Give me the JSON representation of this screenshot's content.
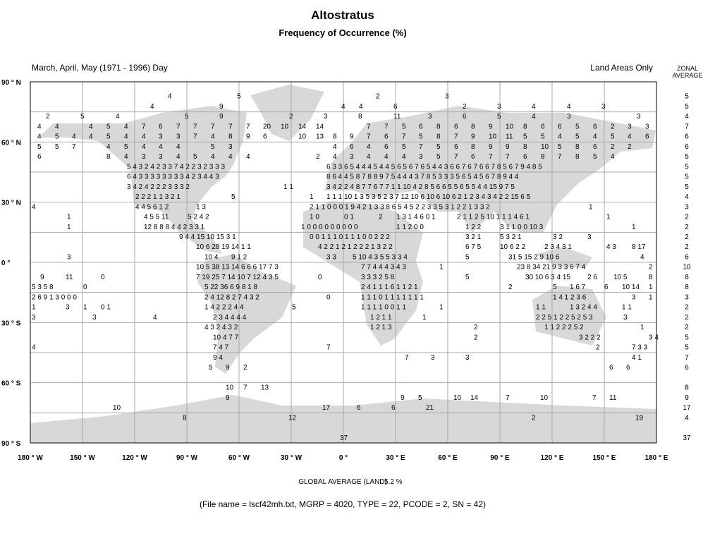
{
  "header": {
    "title": "Altostratus",
    "subtitle": "Frequency of Occurrence (%)",
    "season": "March, April, May (1971 - 1996) Day",
    "region": "Land Areas Only",
    "zonal_label": "ZONAL",
    "zonal_label_2": "AVERAGE"
  },
  "map": {
    "lat_labels": [
      "90 ° N",
      "60 ° N",
      "30 ° N",
      "0 °",
      "30 ° S",
      "60 ° S",
      "90 ° S"
    ],
    "lon_labels": [
      "180 ° W",
      "150 ° W",
      "120 ° W",
      "90 ° W",
      "60 ° W",
      "30 ° W",
      "0 °",
      "30 ° E",
      "60 ° E",
      "90 ° E",
      "120 ° E",
      "150 ° E",
      "180 ° E"
    ],
    "zonal_average": [
      "5",
      "5",
      "4",
      "7",
      "6",
      "6",
      "5",
      "5",
      "5",
      "5",
      "4",
      "3",
      "2",
      "2",
      "2",
      "2",
      "6",
      "10",
      "8",
      "8",
      "3",
      "2",
      "2",
      "2",
      "5",
      "5",
      "7",
      "6",
      null,
      "8",
      "9",
      "17",
      "4",
      null,
      "37"
    ],
    "rows": [
      [
        "4",
        "5",
        "2",
        "3"
      ],
      [
        "4",
        "9",
        "4",
        "4",
        "6",
        "2",
        "3",
        "4",
        "4",
        "3"
      ],
      [
        "2",
        "5",
        "4",
        "5",
        "9",
        "2",
        "3",
        "8",
        "11",
        "3",
        "6",
        "5",
        "4",
        "3",
        "3"
      ],
      [
        "4",
        "4",
        "4",
        "5",
        "4",
        "7",
        "6",
        "7",
        "7",
        "7",
        "7",
        "7",
        "20",
        "10",
        "14",
        "14",
        "7",
        "7",
        "5",
        "6",
        "8",
        "6",
        "8",
        "9",
        "10",
        "8",
        "6",
        "6",
        "5",
        "6",
        "2",
        "3",
        "3"
      ],
      [
        "4",
        "5",
        "4",
        "4",
        "5",
        "4",
        "4",
        "3",
        "3",
        "7",
        "4",
        "8",
        "9",
        "6",
        "10",
        "13",
        "8",
        "9",
        "7",
        "6",
        "7",
        "5",
        "8",
        "7",
        "9",
        "10",
        "11",
        "5",
        "5",
        "4",
        "5",
        "4",
        "5",
        "4",
        "6"
      ],
      [
        "5",
        "5",
        "7",
        "4",
        "5",
        "4",
        "4",
        "4",
        "5",
        "3",
        "4",
        "6",
        "4",
        "6",
        "5",
        "7",
        "5",
        "6",
        "8",
        "9",
        "9",
        "8",
        "10",
        "5",
        "8",
        "6",
        "2",
        "2"
      ],
      [
        "6",
        "8",
        "4",
        "3",
        "3",
        "4",
        "5",
        "4",
        "4",
        "4",
        "2",
        "4",
        "3",
        "4",
        "4",
        "4",
        "3",
        "5",
        "7",
        "6",
        "7",
        "7",
        "6",
        "8",
        "7",
        "8",
        "5",
        "4"
      ],
      [
        "5 4 3 2 4 2 3 3 7 4 2 2 3 2 3 3 3",
        "6 3 3 6 5 4 4 4 5 4 4 5 6 5 6 7 6 5 4 4 3 6 6 7 6 7 6 6 7 8 5 6 7 9 4 8 5"
      ],
      [
        "6 4 3 3 3 3 3 3 3 3 4 2 3 4 4 3",
        "8 6 4 4 5 8 7 8 8 9 7 5 4 4 4 3 7 8 5 3 3 3 5 6 5 4 5 6 7 8 9 4 4"
      ],
      [
        "3 4 2 4 2 2 2 3 3 3 2",
        "1 1",
        "3 4 2 2 4 8 7 7 6 7 7 1 1 10 4 2 8 5 6 6 5 5 6 5 5 4 4 15 9 7 5"
      ],
      [
        "2 2 2 1 1 3 2 1",
        "5",
        "1",
        "1 1 1 10 1 3 5 3 5 2 3 7 12 10 6 10 6 10 6 2 1 2 3 4 3 4 2 2 15 6 5"
      ],
      [
        "4",
        "4 4 5 6 1 2",
        "1 3",
        "2 1 1 0 0 0 1 9 4 2 1 3 3 8 6 5 4 5 2 2 3 3 5 3 1 2 2 1 3 3 2",
        "1"
      ],
      [
        "1",
        "4 5 5 11",
        "5 2 4 2",
        "1 0",
        "0 1",
        "2",
        "1 3 1 4 6 0 1",
        "2 1 1 2 5 10 1 1 1 4 6 1",
        "1"
      ],
      [
        "1",
        "12  8 8 8 4 4 2 3 3 1",
        "1 0 0 0 0 0 0 0 0 0",
        "1 1 2 0 0",
        "1 2 2",
        "3 1 1 0 0 10 3",
        "1"
      ],
      [
        "9 4 4 15 10 15 3 1",
        "0 0 1 1 1 0 1 1 1 0 0 2 2 2",
        "3 2 1",
        "5 3 2 1",
        "3 2",
        "3"
      ],
      [
        "10 6 28 19 14 1 1",
        "4 2 2 1 2 1 2 2 2 1 3 2 2",
        "6 7 5",
        "10 6 2 2",
        "2 3 4 3 1",
        "4 3",
        "8 17"
      ],
      [
        "3",
        "10 4",
        "9 1 2",
        "3 3",
        "5 10 4 3 5 5 3 3 4",
        "5",
        "31 5 15 2 9 10 6",
        "4"
      ],
      [
        "10 5 38 13 14 6 6 6 17 7 3",
        "7 7 4 4 4 3 4 3",
        "1",
        "23 8 34 21 9 3 3 6 7 4",
        "2"
      ],
      [
        "9",
        "11",
        "0",
        "7 19 25 7 14 10 7 12 4 3 5",
        "0",
        "3 3 3 2 5 8",
        "5",
        "30 10 6 3 4 15",
        "2 6",
        "10 5",
        "8"
      ],
      [
        "5 3 5 8",
        "0",
        "5 22 36 6 9 8 1 8",
        "2 4 1 1 1 6 1 1 2 1",
        "2",
        "5",
        "1 6 7",
        "6",
        "10 14",
        "1"
      ],
      [
        "2 6 9 1 3 0 0 0",
        "2 4 12 8 2 7 4 3 2",
        "0",
        "1 1 1 0 1 1 1 1 1 1 1",
        "1 4 1 2 3 6",
        "3",
        "1"
      ],
      [
        "1",
        "3",
        "1",
        "0 1",
        "1 4 2 2 2 4 4",
        "5",
        "1 1 1 1 0 0 1 1",
        "1",
        "1 1",
        "1 3 2 4 4",
        "1 1"
      ],
      [
        "3",
        "3",
        "4",
        "2 3 4 4 4 4",
        "1 2 1 1",
        "1",
        "2 2 5 1 2 2 5 2 5 3",
        "3"
      ],
      [
        "4 3 2 4 3 2",
        "1 2 1 3",
        "2",
        "1 1 2 2 2 5 2",
        "1"
      ],
      [
        "10 4 7 7",
        "2",
        "3 2 2 2",
        "3 4"
      ],
      [
        "4",
        "7 4 7",
        "7",
        "2",
        "7 3 3"
      ],
      [
        "9 4",
        "7",
        "3",
        "3",
        "4 1"
      ],
      [
        "5",
        "9",
        "2",
        "6",
        "6"
      ],
      [],
      [
        "10",
        "7",
        "13"
      ],
      [
        "9",
        "9",
        "5",
        "10",
        "14",
        "7",
        "10",
        "7",
        "11"
      ],
      [
        "10",
        "17",
        "6",
        "6",
        "21"
      ],
      [
        "8",
        "12",
        "2",
        "19"
      ],
      [],
      [
        "37"
      ]
    ]
  },
  "footer": {
    "global_average_label": "GLOBAL AVERAGE (LAND)",
    "global_average": "5.2 %",
    "file_info": "(File name = lscf42mh.txt, MGRP = 4020, TYPE = 22, PCODE = 2, SN = 42)"
  }
}
